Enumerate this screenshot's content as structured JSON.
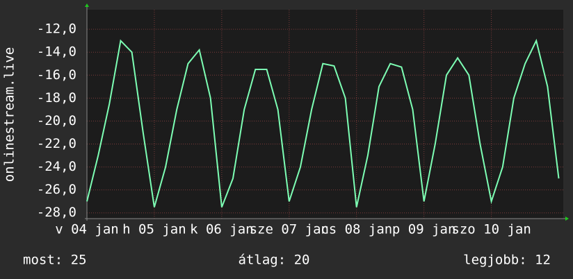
{
  "chart_data": {
    "type": "line",
    "ylabel": "onlinestream.live",
    "x": [
      0,
      4,
      8,
      12,
      16,
      20,
      24,
      28,
      32,
      36,
      40,
      44,
      48,
      52,
      56,
      60,
      64,
      68,
      72,
      76,
      80,
      84,
      88,
      92,
      96,
      100,
      104,
      108,
      112,
      116,
      120,
      124,
      128,
      132,
      136,
      140,
      144,
      148,
      152,
      156,
      160,
      164,
      168
    ],
    "series": [
      {
        "name": "onlinestream.live",
        "color": "#7dffb4",
        "values": [
          -27,
          -23,
          -18.5,
          -13,
          -14,
          -21,
          -27.5,
          -24,
          -19,
          -15,
          -13.8,
          -18,
          -27.5,
          -25,
          -19,
          -15.5,
          -15.5,
          -19,
          -27,
          -24,
          -19,
          -15,
          -15.2,
          -18,
          -27.5,
          -23,
          -17,
          -15,
          -15.3,
          -19,
          -27,
          -22,
          -16,
          -14.5,
          -16,
          -22,
          -27,
          -24,
          -18,
          -15,
          -13,
          -17,
          -25
        ]
      }
    ],
    "xlim": [
      0,
      169.6
    ],
    "xticks": [
      {
        "value": 0,
        "label": "v 04 jan"
      },
      {
        "value": 24,
        "label": "h 05 jan"
      },
      {
        "value": 48,
        "label": "k 06 jan"
      },
      {
        "value": 72,
        "label": "sze 07 jan"
      },
      {
        "value": 96,
        "label": "cs 08 jan"
      },
      {
        "value": 120,
        "label": "p 09 jan"
      },
      {
        "value": 144,
        "label": "szo 10 jan"
      }
    ],
    "ylim": [
      -28.5,
      -10.3
    ],
    "yticks": [
      {
        "value": -28,
        "label": "-28,0"
      },
      {
        "value": -26,
        "label": "-26,0"
      },
      {
        "value": -24,
        "label": "-24,0"
      },
      {
        "value": -22,
        "label": "-22,0"
      },
      {
        "value": -20,
        "label": "-20,0"
      },
      {
        "value": -18,
        "label": "-18,0"
      },
      {
        "value": -16,
        "label": "-16,0"
      },
      {
        "value": -14,
        "label": "-14,0"
      },
      {
        "value": -12,
        "label": "-12,0"
      }
    ],
    "grid": true,
    "footer": [
      "most: 25",
      "átlag: 20",
      "legjobb: 12"
    ]
  }
}
